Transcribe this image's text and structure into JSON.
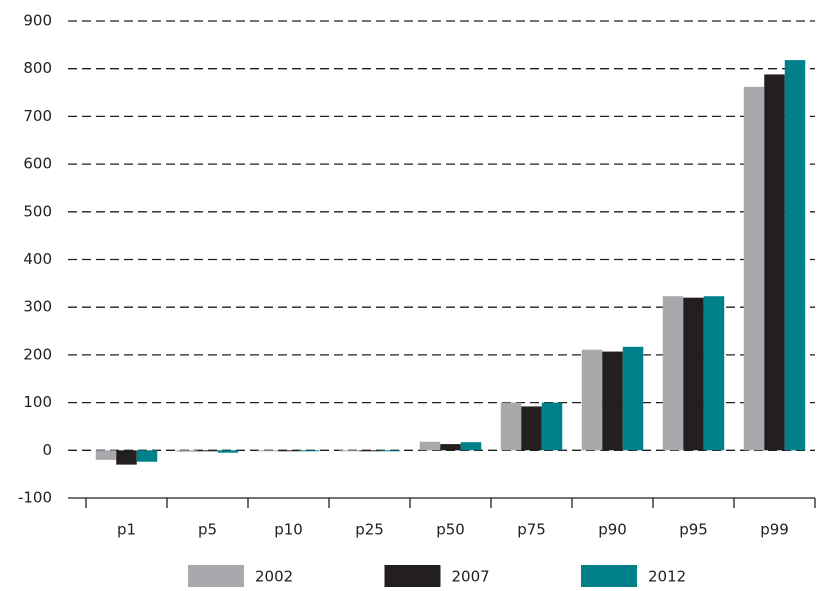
{
  "chart_data": {
    "type": "bar",
    "categories": [
      "p1",
      "p5",
      "p10",
      "p25",
      "p50",
      "p75",
      "p90",
      "p95",
      "p99"
    ],
    "series": [
      {
        "name": "2002",
        "color": "#a7a9ac",
        "values": [
          -20,
          -3,
          -2,
          -1,
          18,
          100,
          211,
          323,
          762
        ]
      },
      {
        "name": "2007",
        "color": "#231f20",
        "values": [
          -30,
          -2,
          -2,
          -1,
          13,
          92,
          207,
          320,
          788
        ]
      },
      {
        "name": "2012",
        "color": "#00808a",
        "values": [
          -24,
          -5,
          -2,
          -1,
          17,
          100,
          217,
          323,
          818
        ]
      }
    ],
    "ylim": [
      -100,
      900
    ],
    "yticks": [
      -100,
      0,
      100,
      200,
      300,
      400,
      500,
      600,
      700,
      800,
      900
    ],
    "grid": true,
    "legend": "bottom"
  }
}
